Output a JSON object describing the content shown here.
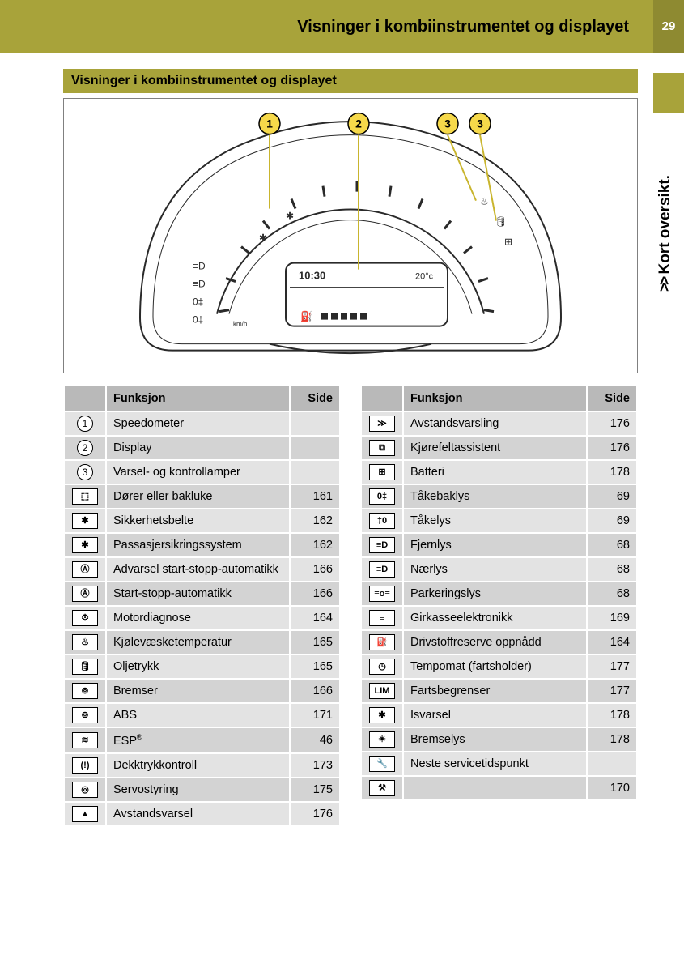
{
  "header": {
    "title": "Visninger i kombiinstrumentet og displayet",
    "page_number": "29"
  },
  "side_tab": {
    "chevrons": ">>",
    "label": "Kort oversikt."
  },
  "section_heading": "Visninger i kombiinstrumentet og displayet",
  "diagram": {
    "callouts": [
      "1",
      "2",
      "3",
      "3"
    ],
    "display_time": "10:30",
    "display_temp": "20°c",
    "speed_unit": "km/h"
  },
  "table_headers": {
    "function": "Funksjon",
    "page": "Side"
  },
  "colors": {
    "olive": "#a8a33a",
    "olive_dark": "#8e8a31",
    "header_grey": "#b9b9b9",
    "row_light": "#e3e3e3",
    "row_dark": "#d3d3d3",
    "outline": "#2a2a2a",
    "callout_yellow": "#f6d94a"
  },
  "left_table": [
    {
      "icon_type": "circle",
      "icon": "1",
      "func": "Speedometer",
      "page": ""
    },
    {
      "icon_type": "circle",
      "icon": "2",
      "func": "Display",
      "page": ""
    },
    {
      "icon_type": "circle",
      "icon": "3",
      "func": "Varsel- og kontrollamper",
      "page": ""
    },
    {
      "icon_type": "box",
      "icon": "⬚",
      "func": "Dører eller bakluke",
      "page": "161"
    },
    {
      "icon_type": "box",
      "icon": "✱",
      "func": "Sikkerhetsbelte",
      "page": "162"
    },
    {
      "icon_type": "box",
      "icon": "✱",
      "func": "Passasjersikringssystem",
      "page": "162"
    },
    {
      "icon_type": "box",
      "icon": "Ⓐ",
      "func": "Advarsel start-stopp-automatikk",
      "page": "166"
    },
    {
      "icon_type": "box",
      "icon": "Ⓐ",
      "func": "Start-stopp-automatikk",
      "page": "166"
    },
    {
      "icon_type": "box",
      "icon": "⚙",
      "func": "Motordiagnose",
      "page": "164"
    },
    {
      "icon_type": "box",
      "icon": "♨",
      "func": "Kjølevæsketemperatur",
      "page": "165"
    },
    {
      "icon_type": "box",
      "icon": "🛢",
      "func": "Oljetrykk",
      "page": "165"
    },
    {
      "icon_type": "box",
      "icon": "⊚",
      "func": "Bremser",
      "page": "166"
    },
    {
      "icon_type": "box",
      "icon": "⊚",
      "func": "ABS",
      "page": "171"
    },
    {
      "icon_type": "box",
      "icon": "≋",
      "func": "ESP®",
      "page": "46",
      "sup": true
    },
    {
      "icon_type": "box",
      "icon": "(!)",
      "func": "Dekktrykkontroll",
      "page": "173"
    },
    {
      "icon_type": "box",
      "icon": "◎",
      "func": "Servostyring",
      "page": "175"
    },
    {
      "icon_type": "box",
      "icon": "▲",
      "func": "Avstandsvarsel",
      "page": "176"
    }
  ],
  "right_table": [
    {
      "icon_type": "box",
      "icon": "≫",
      "func": "Avstandsvarsling",
      "page": "176"
    },
    {
      "icon_type": "box",
      "icon": "⧉",
      "func": "Kjørefeltassistent",
      "page": "176"
    },
    {
      "icon_type": "box",
      "icon": "⊞",
      "func": "Batteri",
      "page": "178"
    },
    {
      "icon_type": "box",
      "icon": "0‡",
      "func": "Tåkebaklys",
      "page": "69"
    },
    {
      "icon_type": "box",
      "icon": "‡0",
      "func": "Tåkelys",
      "page": "69"
    },
    {
      "icon_type": "box",
      "icon": "≡D",
      "func": "Fjernlys",
      "page": "68"
    },
    {
      "icon_type": "box",
      "icon": "≡D",
      "func": "Nærlys",
      "page": "68"
    },
    {
      "icon_type": "box",
      "icon": "≡o≡",
      "func": "Parkeringslys",
      "page": "68"
    },
    {
      "icon_type": "box",
      "icon": "≡",
      "func": "Girkasseelektronikk",
      "page": "169"
    },
    {
      "icon_type": "box",
      "icon": "⛽",
      "func": "Drivstoffreserve oppnådd",
      "page": "164"
    },
    {
      "icon_type": "box",
      "icon": "◷",
      "func": "Tempomat (fartsholder)",
      "page": "177"
    },
    {
      "icon_type": "box",
      "icon": "LIM",
      "func": "Fartsbegrenser",
      "page": "177"
    },
    {
      "icon_type": "box",
      "icon": "✱",
      "func": "Isvarsel",
      "page": "178"
    },
    {
      "icon_type": "box",
      "icon": "☀",
      "func": "Bremselys",
      "page": "178"
    },
    {
      "icon_type": "box",
      "icon": "🔧",
      "func": "Neste servicetidspunkt",
      "page": ""
    },
    {
      "icon_type": "box",
      "icon": "⚒",
      "func": "",
      "page": "170"
    }
  ]
}
